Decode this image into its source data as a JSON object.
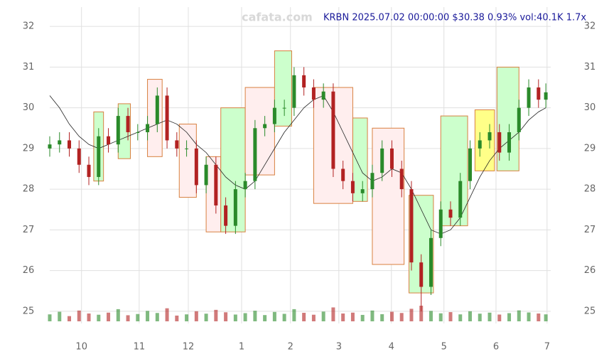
{
  "chart_data": {
    "type": "candlestick",
    "title": "KRBN 2025.07.02 00:00:00 $30.38 0.93% vol:40.1K 1.7x",
    "watermark": "cafata.com",
    "up_color": "#2a8a2a",
    "down_color": "#b22222",
    "ma_color": "#222222",
    "xlim": [
      0,
      205
    ],
    "ylim": [
      24.7,
      32.3
    ],
    "yticks": [
      25,
      26,
      27,
      28,
      29,
      30,
      31,
      32
    ],
    "xticks": [
      {
        "value": 13,
        "label": "10"
      },
      {
        "value": 36.6,
        "label": "11"
      },
      {
        "value": 56.7,
        "label": "12"
      },
      {
        "value": 78.5,
        "label": "1"
      },
      {
        "value": 98.5,
        "label": "2"
      },
      {
        "value": 118.3,
        "label": "3"
      },
      {
        "value": 139.8,
        "label": "4"
      },
      {
        "value": 161.3,
        "label": "5"
      },
      {
        "value": 182.6,
        "label": "6"
      },
      {
        "value": 203.5,
        "label": "7"
      }
    ],
    "grid": true,
    "x": [
      0,
      4,
      8,
      12,
      16,
      20,
      24,
      28,
      32,
      36,
      40,
      44,
      48,
      52,
      56,
      60,
      64,
      68,
      72,
      76,
      80,
      84,
      88,
      92,
      96,
      100,
      104,
      108,
      112,
      116,
      120,
      124,
      128,
      132,
      136,
      140,
      144,
      148,
      152,
      156,
      160,
      164,
      168,
      172,
      176,
      180,
      184,
      188,
      192,
      196,
      200,
      203
    ],
    "open": [
      29.0,
      29.1,
      29.2,
      29.0,
      28.6,
      28.3,
      29.3,
      29.1,
      29.8,
      29.4,
      29.4,
      29.6,
      30.3,
      29.2,
      29.0,
      29.0,
      28.1,
      28.6,
      27.6,
      27.1,
      28.0,
      28.2,
      29.5,
      29.6,
      30.0,
      30.0,
      30.8,
      30.5,
      30.2,
      30.4,
      28.5,
      28.2,
      27.9,
      28.0,
      28.4,
      29.0,
      28.5,
      28.0,
      26.2,
      25.6,
      26.8,
      27.5,
      27.3,
      28.2,
      29.0,
      29.2,
      29.4,
      28.9,
      29.4,
      30.0,
      30.5,
      30.2
    ],
    "high": [
      29.3,
      29.4,
      29.4,
      29.2,
      28.8,
      29.5,
      29.5,
      30.0,
      30.0,
      29.6,
      29.8,
      30.5,
      30.5,
      29.4,
      29.2,
      29.2,
      28.8,
      28.8,
      27.8,
      28.2,
      28.4,
      29.7,
      29.8,
      30.2,
      30.2,
      31.0,
      31.0,
      30.7,
      30.6,
      30.6,
      28.7,
      28.4,
      28.2,
      28.6,
      29.2,
      29.2,
      28.7,
      28.2,
      26.4,
      27.0,
      27.7,
      27.7,
      28.4,
      29.2,
      29.4,
      29.6,
      29.6,
      29.6,
      30.2,
      30.7,
      30.7,
      30.6
    ],
    "low": [
      28.8,
      28.9,
      28.8,
      28.4,
      28.1,
      28.1,
      28.9,
      28.9,
      29.2,
      29.2,
      29.2,
      29.4,
      29.0,
      28.8,
      28.8,
      27.9,
      27.9,
      27.4,
      26.9,
      26.9,
      27.8,
      28.0,
      29.3,
      29.4,
      29.8,
      29.8,
      30.3,
      30.0,
      30.0,
      28.3,
      28.0,
      27.7,
      27.7,
      27.8,
      28.2,
      28.3,
      27.8,
      26.0,
      25.0,
      25.4,
      26.6,
      27.1,
      27.1,
      28.0,
      28.8,
      29.0,
      28.7,
      28.7,
      29.2,
      29.8,
      30.0,
      30.0
    ],
    "close": [
      29.1,
      29.2,
      29.0,
      28.6,
      28.3,
      29.3,
      29.1,
      29.8,
      29.4,
      29.4,
      29.6,
      30.3,
      29.2,
      29.0,
      29.0,
      28.1,
      28.6,
      27.6,
      27.1,
      28.0,
      28.2,
      29.5,
      29.6,
      30.0,
      30.0,
      30.8,
      30.5,
      30.2,
      30.4,
      28.5,
      28.2,
      27.9,
      28.0,
      28.4,
      29.0,
      28.5,
      28.0,
      26.2,
      25.6,
      26.8,
      27.5,
      27.3,
      28.2,
      29.0,
      29.2,
      29.4,
      28.9,
      29.4,
      30.0,
      30.5,
      30.2,
      30.38
    ],
    "ma": [
      30.3,
      30.0,
      29.6,
      29.3,
      29.1,
      29.0,
      29.1,
      29.2,
      29.3,
      29.4,
      29.5,
      29.6,
      29.7,
      29.6,
      29.4,
      29.1,
      28.9,
      28.6,
      28.3,
      28.1,
      28.0,
      28.2,
      28.6,
      29.0,
      29.4,
      29.7,
      30.0,
      30.2,
      30.3,
      29.9,
      29.4,
      28.9,
      28.4,
      28.2,
      28.3,
      28.5,
      28.4,
      28.0,
      27.5,
      27.0,
      26.9,
      27.0,
      27.3,
      27.8,
      28.3,
      28.7,
      29.0,
      29.2,
      29.4,
      29.7,
      29.9,
      30.0
    ],
    "volume": [
      40,
      55,
      30,
      62,
      45,
      38,
      50,
      70,
      35,
      42,
      60,
      48,
      75,
      33,
      40,
      58,
      44,
      66,
      52,
      39,
      47,
      61,
      36,
      54,
      43,
      70,
      49,
      38,
      56,
      80,
      45,
      50,
      37,
      62,
      41,
      55,
      48,
      72,
      90,
      60,
      46,
      53,
      40,
      58,
      44,
      50,
      39,
      47,
      63,
      51,
      45,
      40.1
    ],
    "zones": [
      {
        "x0": 18,
        "x1": 22,
        "low": 28.2,
        "high": 29.9,
        "color": "#ccffcc"
      },
      {
        "x0": 28,
        "x1": 33,
        "low": 28.75,
        "high": 30.1,
        "color": "#ccffcc"
      },
      {
        "x0": 40,
        "x1": 46,
        "low": 28.8,
        "high": 30.7,
        "color": "#ffeeee"
      },
      {
        "x0": 53,
        "x1": 60,
        "low": 27.8,
        "high": 29.6,
        "color": "#ffeeee"
      },
      {
        "x0": 64,
        "x1": 70,
        "low": 26.95,
        "high": 28.8,
        "color": "#ffeeee"
      },
      {
        "x0": 70,
        "x1": 80,
        "low": 26.95,
        "high": 30.0,
        "color": "#ccffcc"
      },
      {
        "x0": 80,
        "x1": 92,
        "low": 28.35,
        "high": 30.5,
        "color": "#ffeeee"
      },
      {
        "x0": 92,
        "x1": 99,
        "low": 29.55,
        "high": 31.4,
        "color": "#ccffcc"
      },
      {
        "x0": 108,
        "x1": 124,
        "low": 27.65,
        "high": 30.5,
        "color": "#ffeeee"
      },
      {
        "x0": 124,
        "x1": 130,
        "low": 27.7,
        "high": 29.75,
        "color": "#ccffcc"
      },
      {
        "x0": 132,
        "x1": 145,
        "low": 26.15,
        "high": 29.5,
        "color": "#ffeeee"
      },
      {
        "x0": 147,
        "x1": 157,
        "low": 25.45,
        "high": 27.85,
        "color": "#ccffcc"
      },
      {
        "x0": 160,
        "x1": 171,
        "low": 27.1,
        "high": 29.8,
        "color": "#ccffcc"
      },
      {
        "x0": 174,
        "x1": 182,
        "low": 28.45,
        "high": 29.95,
        "color": "#ffff88"
      },
      {
        "x0": 183,
        "x1": 192,
        "low": 28.45,
        "high": 31.0,
        "color": "#ccffcc"
      }
    ]
  }
}
